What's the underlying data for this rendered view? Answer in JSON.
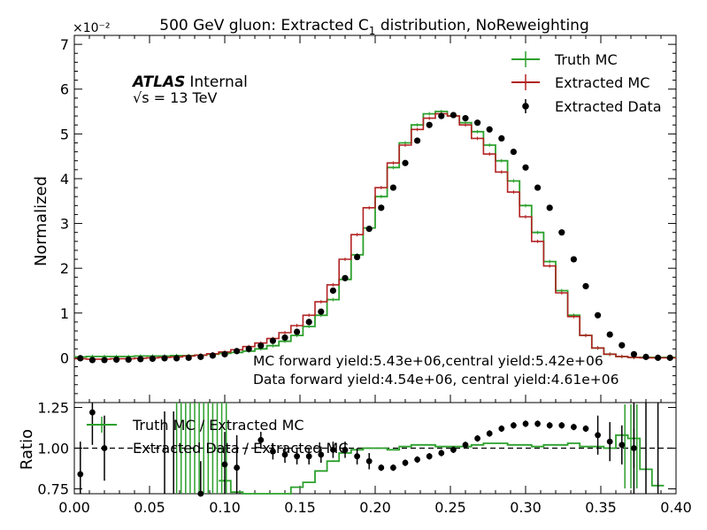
{
  "chart_data": [
    {
      "type": "line",
      "panel": "main",
      "title": "500 GeV gluon: Extracted C₁ distribution, NoReweighting",
      "title_main": "500 GeV gluon: Extracted C",
      "title_sub": "1",
      "title_tail": " distribution, NoReweighting",
      "ylabel": "Normalized",
      "scale_label": "×10⁻²",
      "xlim": [
        0.0,
        0.4
      ],
      "ylim": [
        -1,
        7.2
      ],
      "y_ticks": [
        "0",
        "1",
        "2",
        "3",
        "4",
        "5",
        "6",
        "7"
      ],
      "atlas_label": "ATLAS",
      "atlas_status": "Internal",
      "energy_label": "√s = 13 TeV",
      "annotations": [
        "MC forward yield:5.43e+06,central yield:5.42e+06",
        "Data forward yield:4.54e+06, central yield:4.61e+06"
      ],
      "legend_position": "top-right",
      "legend": [
        {
          "name": "Truth MC",
          "color": "#2ca02c",
          "marker": "errorbar-line"
        },
        {
          "name": "Extracted MC",
          "color": "#b22222",
          "marker": "errorbar-line"
        },
        {
          "name": "Extracted Data",
          "color": "#000000",
          "marker": "dot"
        }
      ],
      "bin_width": 0.008,
      "x": [
        0.004,
        0.012,
        0.02,
        0.028,
        0.036,
        0.044,
        0.052,
        0.06,
        0.068,
        0.076,
        0.084,
        0.092,
        0.1,
        0.108,
        0.116,
        0.124,
        0.132,
        0.14,
        0.148,
        0.156,
        0.164,
        0.172,
        0.18,
        0.188,
        0.196,
        0.204,
        0.212,
        0.22,
        0.228,
        0.236,
        0.244,
        0.252,
        0.26,
        0.268,
        0.276,
        0.284,
        0.292,
        0.3,
        0.308,
        0.316,
        0.324,
        0.332,
        0.34,
        0.348,
        0.356,
        0.364,
        0.372,
        0.38,
        0.388,
        0.396
      ],
      "series": [
        {
          "name": "Truth MC",
          "color": "#2ca02c",
          "values": [
            0.02,
            0.03,
            0.03,
            0.03,
            0.03,
            0.04,
            0.04,
            0.04,
            0.05,
            0.05,
            0.06,
            0.08,
            0.1,
            0.12,
            0.15,
            0.2,
            0.27,
            0.37,
            0.5,
            0.7,
            0.95,
            1.3,
            1.75,
            2.3,
            2.9,
            3.6,
            4.25,
            4.8,
            5.2,
            5.45,
            5.5,
            5.4,
            5.25,
            5.05,
            4.75,
            4.4,
            3.95,
            3.4,
            2.8,
            2.15,
            1.5,
            0.95,
            0.5,
            0.22,
            0.08,
            0.03,
            0.01,
            0.01,
            0.01,
            0.01
          ]
        },
        {
          "name": "Extracted MC",
          "color": "#b22222",
          "values": [
            -0.02,
            -0.03,
            -0.03,
            -0.02,
            -0.02,
            -0.01,
            0.0,
            0.01,
            0.02,
            0.04,
            0.06,
            0.09,
            0.13,
            0.18,
            0.25,
            0.33,
            0.43,
            0.56,
            0.72,
            0.95,
            1.25,
            1.63,
            2.2,
            2.75,
            3.35,
            3.8,
            4.35,
            4.75,
            5.1,
            5.35,
            5.45,
            5.4,
            5.2,
            4.9,
            4.55,
            4.15,
            3.7,
            3.15,
            2.6,
            2.05,
            1.45,
            0.92,
            0.5,
            0.22,
            0.08,
            0.03,
            0.01,
            0.0,
            0.0,
            0.0
          ]
        },
        {
          "name": "Extracted Data",
          "color": "#000000",
          "values": [
            -0.01,
            -0.05,
            -0.05,
            -0.04,
            -0.04,
            -0.03,
            -0.02,
            -0.01,
            -0.01,
            0.0,
            0.02,
            0.05,
            0.08,
            0.15,
            0.2,
            0.27,
            0.38,
            0.45,
            0.58,
            0.8,
            1.03,
            1.5,
            1.78,
            2.25,
            2.88,
            3.35,
            3.8,
            4.35,
            4.85,
            5.2,
            5.4,
            5.42,
            5.35,
            5.25,
            5.1,
            4.9,
            4.6,
            4.25,
            3.8,
            3.35,
            2.8,
            2.2,
            1.6,
            0.95,
            0.52,
            0.28,
            0.08,
            0.02,
            0.0,
            0.0
          ]
        }
      ]
    },
    {
      "type": "line",
      "panel": "ratio",
      "ylabel": "Ratio",
      "xlim": [
        0.0,
        0.4
      ],
      "ylim": [
        0.72,
        1.28
      ],
      "x_ticks": [
        "0.00",
        "0.05",
        "0.10",
        "0.15",
        "0.20",
        "0.25",
        "0.30",
        "0.35",
        "0.40"
      ],
      "y_ticks": [
        "0.75",
        "1.00",
        "1.25"
      ],
      "reference_line": 1.0,
      "legend": [
        {
          "name": "Truth MC / Extracted MC",
          "color": "#2ca02c"
        },
        {
          "name": "Extracted Data / Extracted MC",
          "color": "#000000"
        }
      ],
      "series": [
        {
          "name": "Truth MC / Extracted MC",
          "color": "#2ca02c",
          "values": [
            null,
            null,
            null,
            null,
            null,
            null,
            null,
            null,
            null,
            null,
            null,
            null,
            0.8,
            0.73,
            0.71,
            0.68,
            0.66,
            0.72,
            0.76,
            0.79,
            0.86,
            0.92,
            0.97,
            0.99,
            1.0,
            1.0,
            0.99,
            1.01,
            1.02,
            1.02,
            1.01,
            1.01,
            1.01,
            1.02,
            1.03,
            1.03,
            1.02,
            1.02,
            1.01,
            1.02,
            1.02,
            1.03,
            1.01,
            1.01,
            1.0,
            1.08,
            1.06,
            0.87,
            0.77,
            null
          ]
        },
        {
          "name": "Extracted Data / Extracted MC",
          "color": "#000000",
          "values": [
            0.84,
            1.22,
            1.0,
            null,
            null,
            null,
            null,
            null,
            null,
            null,
            0.72,
            null,
            0.9,
            0.88,
            null,
            1.05,
            0.98,
            0.96,
            0.95,
            0.95,
            0.96,
            0.99,
            0.99,
            0.95,
            0.92,
            0.88,
            0.88,
            0.91,
            0.93,
            0.95,
            0.97,
            0.99,
            1.02,
            1.06,
            1.09,
            1.12,
            1.14,
            1.15,
            1.15,
            1.14,
            1.14,
            1.13,
            1.12,
            1.08,
            1.04,
            1.02,
            1.0,
            null,
            null,
            null
          ]
        }
      ]
    }
  ]
}
